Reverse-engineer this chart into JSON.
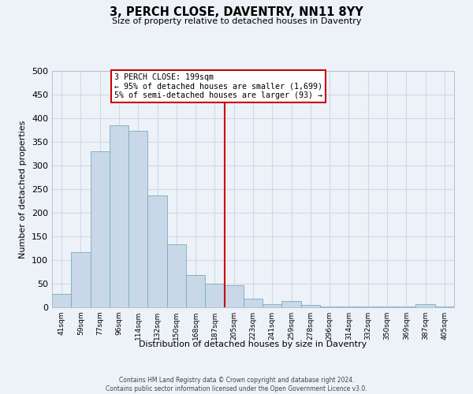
{
  "title": "3, PERCH CLOSE, DAVENTRY, NN11 8YY",
  "subtitle": "Size of property relative to detached houses in Daventry",
  "xlabel": "Distribution of detached houses by size in Daventry",
  "ylabel": "Number of detached properties",
  "bar_labels": [
    "41sqm",
    "59sqm",
    "77sqm",
    "96sqm",
    "114sqm",
    "132sqm",
    "150sqm",
    "168sqm",
    "187sqm",
    "205sqm",
    "223sqm",
    "241sqm",
    "259sqm",
    "278sqm",
    "296sqm",
    "314sqm",
    "332sqm",
    "350sqm",
    "369sqm",
    "387sqm",
    "405sqm"
  ],
  "bar_values": [
    28,
    116,
    330,
    385,
    373,
    236,
    133,
    68,
    50,
    46,
    18,
    6,
    13,
    5,
    2,
    1,
    1,
    1,
    1,
    6,
    1
  ],
  "bar_color": "#c8d8e8",
  "bar_edge_color": "#7aaabb",
  "vline_x_index": 9,
  "vline_color": "#cc0000",
  "annotation_title": "3 PERCH CLOSE: 199sqm",
  "annotation_line1": "← 95% of detached houses are smaller (1,699)",
  "annotation_line2": "5% of semi-detached houses are larger (93) →",
  "annotation_box_color": "#cc0000",
  "ylim": [
    0,
    500
  ],
  "yticks": [
    0,
    50,
    100,
    150,
    200,
    250,
    300,
    350,
    400,
    450,
    500
  ],
  "bg_color": "#edf2f8",
  "plot_bg_color": "#edf2f8",
  "grid_color": "#d0d8e8",
  "footer_line1": "Contains HM Land Registry data © Crown copyright and database right 2024.",
  "footer_line2": "Contains public sector information licensed under the Open Government Licence v3.0."
}
